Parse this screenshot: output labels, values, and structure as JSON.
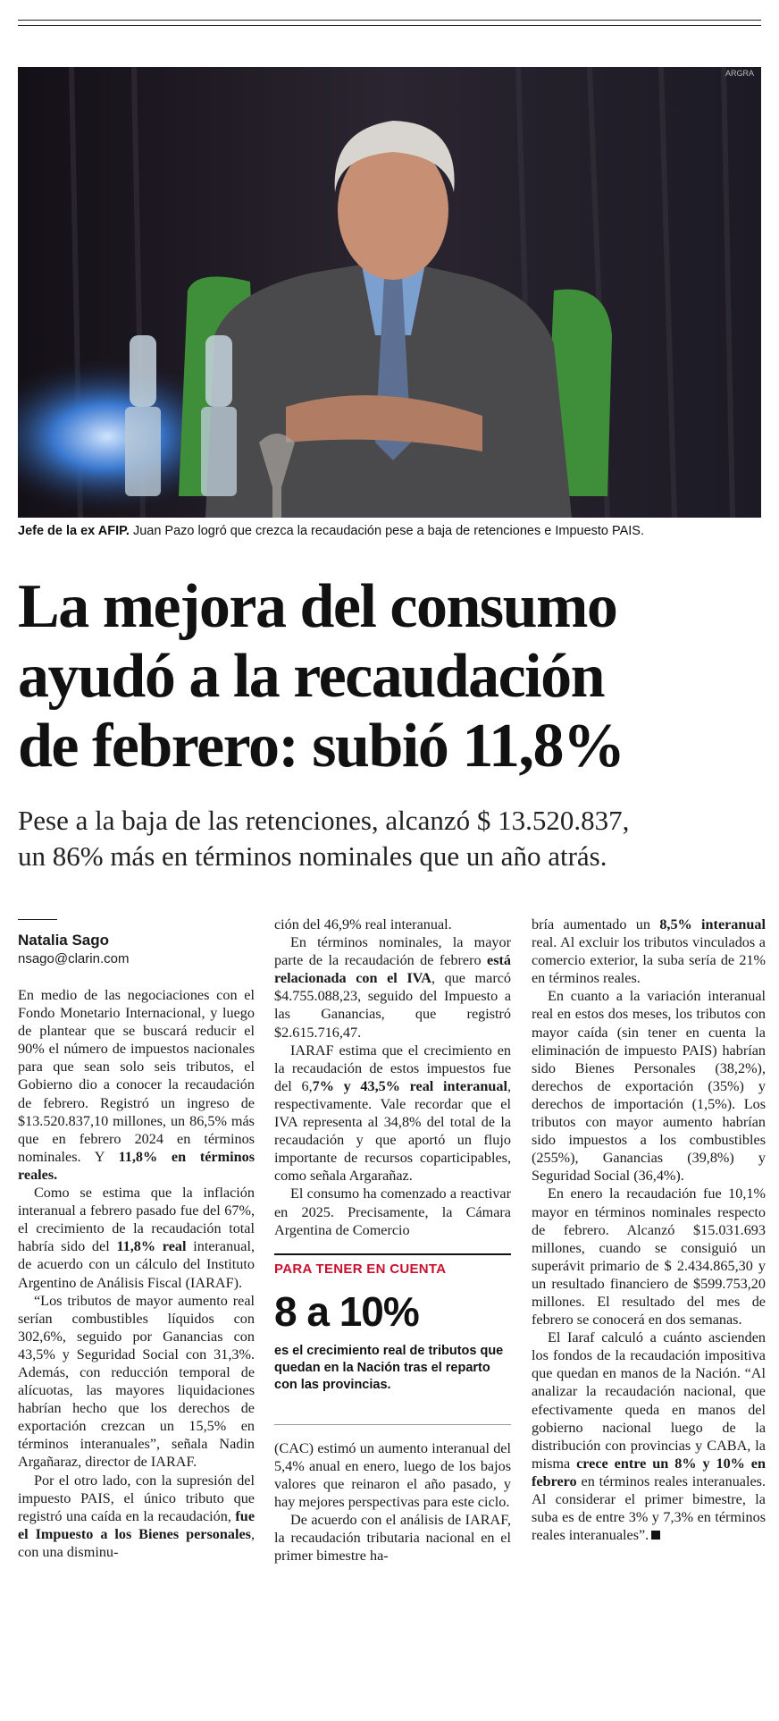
{
  "photo": {
    "credit": "ARGRA"
  },
  "caption": {
    "lead": "Jefe de la ex AFIP.",
    "text": " Juan Pazo logró que crezca la recaudación pese a baja de retenciones e Impuesto PAIS."
  },
  "headline": {
    "line1": "La mejora del consumo",
    "line2": "ayudó a la recaudación",
    "line3": "de febrero: subió 11,8%"
  },
  "subhead": {
    "line1": "Pese a la baja de las retenciones, alcanzó $ 13.520.837,",
    "line2": "un 86% más en términos nominales que un año atrás."
  },
  "byline": {
    "author": "Natalia Sago",
    "email": "nsago@clarin.com"
  },
  "body": {
    "col1": {
      "p1a": "En medio de las negociaciones con el Fondo Monetario Internacional, y luego de plantear que se buscará reducir el 90% el número de impuestos nacionales para que sean solo seis tributos, el Gobierno dio a conocer la recaudación de febrero. Registró un ingreso de $13.520.837,10 millones, un 86,5% más que en febrero 2024 en términos nominales. Y ",
      "p1b": "11,8% en términos reales.",
      "p2a": "Como se estima que la inflación interanual a febrero pasado fue del 67%, el crecimiento de la recaudación total habría sido del ",
      "p2b": "11,8% real",
      "p2c": " interanual, de acuerdo con un cálculo del Instituto Argentino de Análisis Fiscal (IARAF).",
      "p3": "“Los tributos de mayor aumento real serían combustibles líquidos con 302,6%, seguido por Ganancias con 43,5% y Seguridad Social con 31,3%. Además, con reducción temporal de alícuotas, las mayores liquidaciones habrían hecho que los derechos de exportación crezcan un 15,5% en términos interanuales”, señala Nadin Argañaraz, director de IARAF.",
      "p4a": "Por el otro lado, con la supresión del impuesto PAIS, el único tributo que registró una caída en la recaudación, ",
      "p4b": "fue el Impuesto a los Bienes personales",
      "p4c": ", con una disminu-"
    },
    "col2": {
      "p1": "ción del 46,9% real interanual.",
      "p2a": "En términos nominales, la mayor parte de la recaudación de febrero ",
      "p2b": "está relacionada con el IVA",
      "p2c": ", que marcó $4.755.088,23, seguido del Impuesto a las Ganancias, que registró $2.615.716,47.",
      "p3a": "IARAF estima que el crecimiento en la recaudación de estos impuestos fue del 6,",
      "p3b": "7% y 43,5% real interanual",
      "p3c": ", respectivamente. Vale recordar que el IVA representa al 34,8% del total de la recaudación y que aportó un flujo importante de recursos coparticipables, como señala Argarañaz.",
      "p4": "El consumo ha comenzado a reactivar en 2025. Precisamente, la Cámara Argentina de Comercio",
      "box_head": "PARA TENER EN CUENTA",
      "box_figure": "8 a 10%",
      "box_text": "es el crecimiento real de tributos que quedan en la Nación tras el reparto con las provincias.",
      "p5": "(CAC) estimó un aumento interanual del 5,4% anual en enero, luego de los bajos valores que reinaron el año pasado, y hay mejores perspectivas para este ciclo.",
      "p6": "De acuerdo con el análisis de IARAF, la recaudación tributaria nacional en el primer bimestre ha-"
    },
    "col3": {
      "p1a": "bría aumentado un ",
      "p1b": "8,5% interanual",
      "p1c": " real. Al excluir los tributos vinculados a comercio exterior, la suba sería de 21% en términos reales.",
      "p2": "En cuanto a la variación interanual real en estos dos meses, los tributos con mayor caída (sin tener en cuenta la eliminación de impuesto PAIS) habrían sido Bienes Personales (38,2%), derechos de exportación (35%) y derechos de importación (1,5%). Los tributos con mayor aumento habrían sido impuestos a los combustibles (255%), Ganancias (39,8%) y Seguridad Social (36,4%).",
      "p3": "En enero la recaudación fue 10,1% mayor en términos nominales respecto de febrero. Alcanzó $15.031.693 millones, cuando se consiguió un superávit primario de $ 2.434.865,30 y un resultado financiero de $599.753,20 millones. El resultado del mes de febrero se conocerá en dos semanas.",
      "p4a": "El Iaraf calculó a cuánto ascienden los fondos de la recaudación impositiva que quedan en manos de la Nación. “Al analizar la recaudación nacional, que efectivamente queda en manos del gobierno nacional luego de la distribución con provincias y CABA, la misma ",
      "p4b": "crece entre un 8% y 10% en febrero",
      "p4c": " en términos reales interanuales. Al considerar el primer bimestre, la suba es de entre 3% y 7,3% en términos reales interanuales”."
    }
  }
}
